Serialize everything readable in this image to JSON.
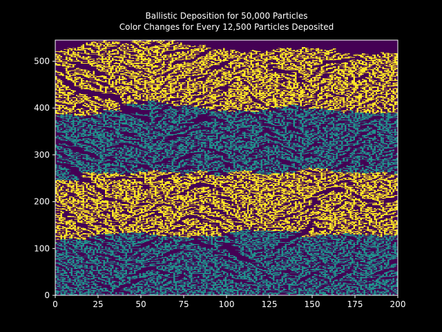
{
  "chart_data": {
    "type": "heatmap",
    "title": "Ballistic Deposition for 50,000 Particles",
    "subtitle": "Color Changes for Every 12,500 Particles Deposited",
    "xlabel": "",
    "ylabel": "",
    "xlim": [
      0,
      200
    ],
    "ylim": [
      0,
      545
    ],
    "x_ticks": [
      0,
      25,
      50,
      75,
      100,
      125,
      150,
      175,
      200
    ],
    "y_ticks": [
      0,
      100,
      200,
      300,
      400,
      500
    ],
    "grid": false,
    "grid_width": 200,
    "total_particles": 50000,
    "particles_per_color": 12500,
    "colors": {
      "empty": "#440154",
      "batch_colors": [
        "#21918c",
        "#fde725",
        "#21918c",
        "#fde725"
      ],
      "background": "#000000",
      "text": "#ffffff"
    }
  }
}
